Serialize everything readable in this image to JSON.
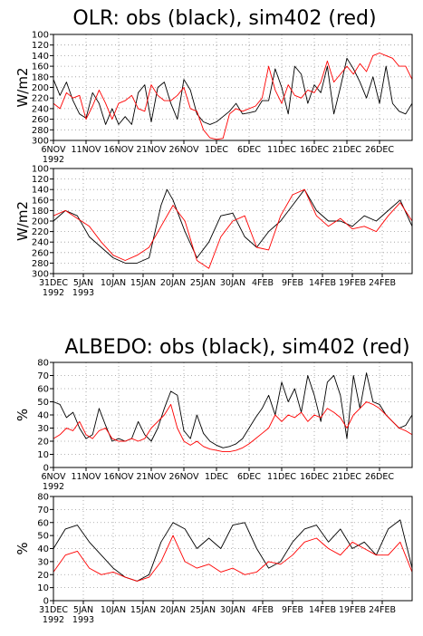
{
  "titles": {
    "olr": "OLR: obs (black), sim402 (red)",
    "albedo": "ALBEDO: obs (black), sim402 (red)"
  },
  "colors": {
    "obs": "#000000",
    "sim": "#ff0000",
    "grid": "#9a9a9a",
    "background": "#ffffff"
  },
  "chart_data": [
    {
      "type": "line",
      "ylabel": "W/m2",
      "ylim": [
        300,
        100
      ],
      "y_inverted": true,
      "yticks": [
        100,
        120,
        140,
        160,
        180,
        200,
        220,
        240,
        260,
        280,
        300
      ],
      "grid": true,
      "xticks": [
        {
          "day": 0,
          "label": "6NOV",
          "sub": "1992"
        },
        {
          "day": 5,
          "label": "11NOV",
          "sub": ""
        },
        {
          "day": 10,
          "label": "16NOV",
          "sub": ""
        },
        {
          "day": 15,
          "label": "21NOV",
          "sub": ""
        },
        {
          "day": 20,
          "label": "26NOV",
          "sub": ""
        },
        {
          "day": 25,
          "label": "1DEC",
          "sub": ""
        },
        {
          "day": 30,
          "label": "6DEC",
          "sub": ""
        },
        {
          "day": 35,
          "label": "11DEC",
          "sub": ""
        },
        {
          "day": 40,
          "label": "16DEC",
          "sub": ""
        },
        {
          "day": 45,
          "label": "21DEC",
          "sub": ""
        },
        {
          "day": 50,
          "label": "26DEC",
          "sub": ""
        }
      ],
      "xrange": [
        0,
        55
      ],
      "series": [
        {
          "name": "obs",
          "color": "#000000",
          "x": [
            0,
            1,
            2,
            3,
            4,
            5,
            6,
            7,
            8,
            9,
            10,
            11,
            12,
            13,
            14,
            15,
            16,
            17,
            18,
            19,
            20,
            21,
            22,
            23,
            24,
            25,
            26,
            27,
            28,
            29,
            30,
            31,
            32,
            33,
            34,
            35,
            36,
            37,
            38,
            39,
            40,
            41,
            42,
            43,
            44,
            45,
            46,
            47,
            48,
            49,
            50,
            51,
            52,
            53,
            54,
            55
          ],
          "y": [
            185,
            215,
            190,
            225,
            250,
            258,
            210,
            230,
            270,
            240,
            270,
            255,
            270,
            210,
            195,
            265,
            200,
            190,
            230,
            260,
            185,
            205,
            250,
            265,
            270,
            265,
            255,
            245,
            230,
            250,
            248,
            245,
            225,
            225,
            165,
            200,
            250,
            160,
            175,
            230,
            195,
            210,
            160,
            250,
            200,
            145,
            165,
            190,
            220,
            180,
            230,
            160,
            230,
            245,
            250,
            230
          ]
        },
        {
          "name": "sim402",
          "color": "#ff0000",
          "x": [
            0,
            1,
            2,
            3,
            4,
            5,
            6,
            7,
            8,
            9,
            10,
            11,
            12,
            13,
            14,
            15,
            16,
            17,
            18,
            19,
            20,
            21,
            22,
            23,
            24,
            25,
            26,
            27,
            28,
            29,
            30,
            31,
            32,
            33,
            34,
            35,
            36,
            37,
            38,
            39,
            40,
            41,
            42,
            43,
            44,
            45,
            46,
            47,
            48,
            49,
            50,
            51,
            52,
            53,
            54,
            55
          ],
          "y": [
            230,
            240,
            210,
            220,
            215,
            260,
            235,
            205,
            230,
            260,
            230,
            225,
            215,
            240,
            245,
            195,
            215,
            225,
            225,
            215,
            200,
            240,
            245,
            280,
            295,
            298,
            296,
            250,
            240,
            245,
            240,
            235,
            220,
            160,
            205,
            230,
            195,
            215,
            220,
            205,
            210,
            190,
            150,
            190,
            175,
            160,
            175,
            155,
            170,
            140,
            135,
            140,
            145,
            160,
            160,
            185
          ]
        }
      ]
    },
    {
      "type": "line",
      "ylabel": "W/m2",
      "ylim": [
        300,
        100
      ],
      "y_inverted": true,
      "yticks": [
        100,
        120,
        140,
        160,
        180,
        200,
        220,
        240,
        260,
        280,
        300
      ],
      "grid": true,
      "xticks": [
        {
          "day": 0,
          "label": "31DEC",
          "sub": "1992"
        },
        {
          "day": 5,
          "label": "5JAN",
          "sub": "1993"
        },
        {
          "day": 10,
          "label": "10JAN",
          "sub": ""
        },
        {
          "day": 15,
          "label": "15JAN",
          "sub": ""
        },
        {
          "day": 20,
          "label": "20JAN",
          "sub": ""
        },
        {
          "day": 25,
          "label": "25JAN",
          "sub": ""
        },
        {
          "day": 30,
          "label": "30JAN",
          "sub": ""
        },
        {
          "day": 35,
          "label": "4FEB",
          "sub": ""
        },
        {
          "day": 40,
          "label": "9FEB",
          "sub": ""
        },
        {
          "day": 45,
          "label": "14FEB",
          "sub": ""
        },
        {
          "day": 50,
          "label": "19FEB",
          "sub": ""
        },
        {
          "day": 55,
          "label": "24FEB",
          "sub": ""
        }
      ],
      "xrange": [
        0,
        60
      ],
      "series": [
        {
          "name": "obs",
          "color": "#000000",
          "x": [
            0,
            2,
            4,
            6,
            8,
            10,
            12,
            14,
            16,
            18,
            19,
            20,
            22,
            24,
            26,
            28,
            30,
            32,
            34,
            36,
            38,
            40,
            42,
            44,
            46,
            48,
            50,
            52,
            54,
            56,
            58,
            60
          ],
          "y": [
            200,
            180,
            190,
            230,
            250,
            270,
            280,
            280,
            270,
            170,
            140,
            160,
            220,
            270,
            240,
            190,
            185,
            230,
            250,
            220,
            200,
            170,
            140,
            180,
            200,
            200,
            210,
            190,
            200,
            180,
            160,
            210
          ]
        },
        {
          "name": "sim402",
          "color": "#ff0000",
          "x": [
            0,
            2,
            4,
            6,
            8,
            10,
            12,
            14,
            16,
            18,
            20,
            22,
            24,
            26,
            28,
            30,
            32,
            34,
            36,
            38,
            40,
            42,
            44,
            46,
            48,
            50,
            52,
            54,
            56,
            58,
            60
          ],
          "y": [
            190,
            180,
            195,
            210,
            240,
            265,
            275,
            265,
            250,
            210,
            170,
            200,
            275,
            290,
            230,
            200,
            190,
            250,
            255,
            190,
            150,
            140,
            190,
            210,
            195,
            215,
            210,
            220,
            190,
            165,
            200
          ]
        }
      ]
    },
    {
      "type": "line",
      "ylabel": "%",
      "ylim": [
        0,
        80
      ],
      "yticks": [
        0,
        10,
        20,
        30,
        40,
        50,
        60,
        70,
        80
      ],
      "grid": true,
      "xticks": [
        {
          "day": 0,
          "label": "6NOV",
          "sub": "1992"
        },
        {
          "day": 5,
          "label": "11NOV",
          "sub": ""
        },
        {
          "day": 10,
          "label": "16NOV",
          "sub": ""
        },
        {
          "day": 15,
          "label": "21NOV",
          "sub": ""
        },
        {
          "day": 20,
          "label": "26NOV",
          "sub": ""
        },
        {
          "day": 25,
          "label": "1DEC",
          "sub": ""
        },
        {
          "day": 30,
          "label": "6DEC",
          "sub": ""
        },
        {
          "day": 35,
          "label": "11DEC",
          "sub": ""
        },
        {
          "day": 40,
          "label": "16DEC",
          "sub": ""
        },
        {
          "day": 45,
          "label": "21DEC",
          "sub": ""
        },
        {
          "day": 50,
          "label": "26DEC",
          "sub": ""
        }
      ],
      "xrange": [
        0,
        55
      ],
      "series": [
        {
          "name": "obs",
          "color": "#000000",
          "x": [
            0,
            1,
            2,
            3,
            4,
            5,
            6,
            7,
            8,
            9,
            10,
            11,
            12,
            13,
            14,
            15,
            16,
            17,
            18,
            19,
            20,
            21,
            22,
            23,
            24,
            25,
            26,
            27,
            28,
            29,
            30,
            31,
            32,
            33,
            34,
            35,
            36,
            37,
            38,
            39,
            40,
            41,
            42,
            43,
            44,
            45,
            46,
            47,
            48,
            49,
            50,
            51,
            52,
            53,
            54,
            55
          ],
          "y": [
            50,
            48,
            38,
            42,
            30,
            22,
            25,
            45,
            32,
            20,
            22,
            20,
            22,
            35,
            25,
            20,
            30,
            45,
            58,
            55,
            28,
            22,
            40,
            26,
            20,
            17,
            15,
            16,
            18,
            22,
            30,
            38,
            45,
            55,
            40,
            65,
            50,
            60,
            42,
            70,
            55,
            35,
            65,
            70,
            55,
            22,
            70,
            45,
            72,
            50,
            48,
            40,
            35,
            30,
            32,
            40
          ]
        },
        {
          "name": "sim402",
          "color": "#ff0000",
          "x": [
            0,
            1,
            2,
            3,
            4,
            5,
            6,
            7,
            8,
            9,
            10,
            11,
            12,
            13,
            14,
            15,
            16,
            17,
            18,
            19,
            20,
            21,
            22,
            23,
            24,
            25,
            26,
            27,
            28,
            29,
            30,
            31,
            32,
            33,
            34,
            35,
            36,
            37,
            38,
            39,
            40,
            41,
            42,
            43,
            44,
            45,
            46,
            47,
            48,
            49,
            50,
            51,
            52,
            53,
            54,
            55
          ],
          "y": [
            22,
            25,
            30,
            28,
            35,
            25,
            22,
            28,
            30,
            22,
            20,
            20,
            22,
            20,
            22,
            30,
            35,
            40,
            48,
            30,
            20,
            17,
            20,
            16,
            14,
            13,
            12,
            12,
            13,
            15,
            18,
            22,
            26,
            30,
            40,
            35,
            40,
            38,
            42,
            35,
            40,
            38,
            45,
            42,
            38,
            30,
            40,
            45,
            50,
            48,
            45,
            40,
            35,
            30,
            28,
            25
          ]
        }
      ]
    },
    {
      "type": "line",
      "ylabel": "%",
      "ylim": [
        0,
        80
      ],
      "yticks": [
        0,
        10,
        20,
        30,
        40,
        50,
        60,
        70,
        80
      ],
      "grid": true,
      "xticks": [
        {
          "day": 0,
          "label": "31DEC",
          "sub": "1992"
        },
        {
          "day": 5,
          "label": "5JAN",
          "sub": "1993"
        },
        {
          "day": 10,
          "label": "10JAN",
          "sub": ""
        },
        {
          "day": 15,
          "label": "15JAN",
          "sub": ""
        },
        {
          "day": 20,
          "label": "20JAN",
          "sub": ""
        },
        {
          "day": 25,
          "label": "25JAN",
          "sub": ""
        },
        {
          "day": 30,
          "label": "30JAN",
          "sub": ""
        },
        {
          "day": 35,
          "label": "4FEB",
          "sub": ""
        },
        {
          "day": 40,
          "label": "9FEB",
          "sub": ""
        },
        {
          "day": 45,
          "label": "14FEB",
          "sub": ""
        },
        {
          "day": 50,
          "label": "19FEB",
          "sub": ""
        },
        {
          "day": 55,
          "label": "24FEB",
          "sub": ""
        }
      ],
      "xrange": [
        0,
        60
      ],
      "series": [
        {
          "name": "obs",
          "color": "#000000",
          "x": [
            0,
            2,
            4,
            6,
            8,
            10,
            12,
            14,
            16,
            18,
            20,
            22,
            24,
            26,
            28,
            30,
            32,
            34,
            36,
            38,
            40,
            42,
            44,
            46,
            48,
            50,
            52,
            54,
            56,
            58,
            60
          ],
          "y": [
            40,
            55,
            58,
            45,
            35,
            25,
            18,
            15,
            20,
            45,
            60,
            55,
            40,
            48,
            40,
            58,
            60,
            40,
            25,
            30,
            45,
            55,
            58,
            45,
            55,
            40,
            45,
            35,
            55,
            62,
            25
          ]
        },
        {
          "name": "sim402",
          "color": "#ff0000",
          "x": [
            0,
            2,
            4,
            6,
            8,
            10,
            12,
            14,
            16,
            18,
            20,
            22,
            24,
            26,
            28,
            30,
            32,
            34,
            36,
            38,
            40,
            42,
            44,
            46,
            48,
            50,
            52,
            54,
            56,
            58,
            60
          ],
          "y": [
            22,
            35,
            38,
            25,
            20,
            22,
            18,
            15,
            18,
            30,
            50,
            30,
            25,
            28,
            22,
            25,
            20,
            22,
            30,
            28,
            35,
            45,
            48,
            40,
            35,
            45,
            40,
            35,
            35,
            45,
            22
          ]
        }
      ]
    }
  ]
}
